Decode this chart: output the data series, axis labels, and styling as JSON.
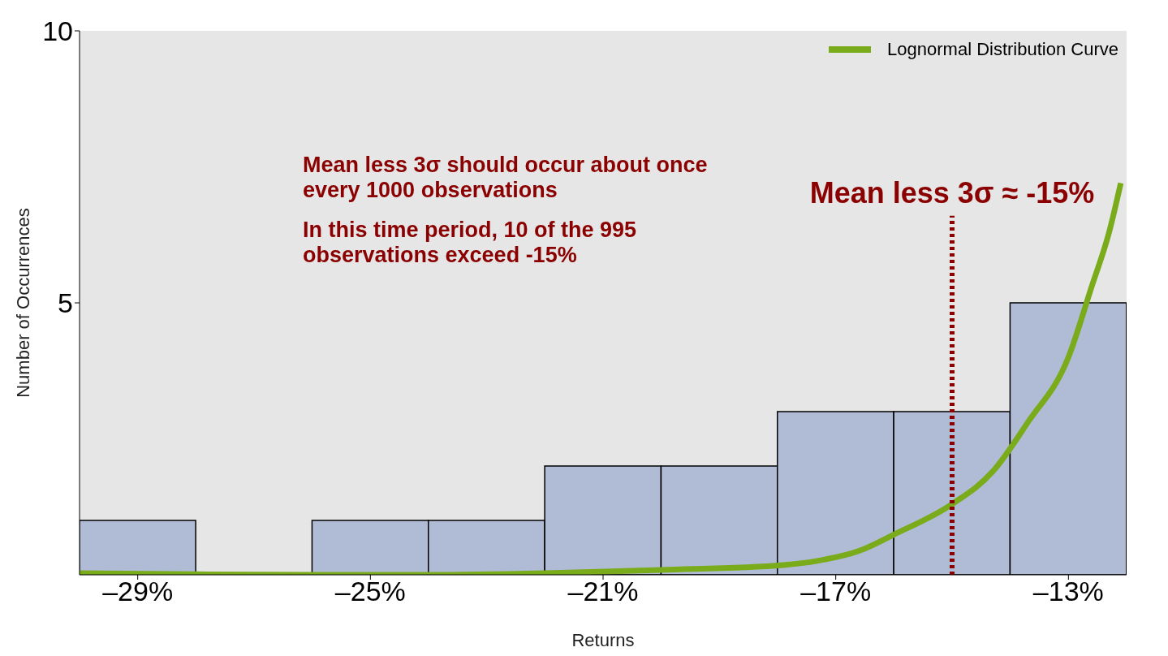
{
  "chart_data": {
    "type": "histogram",
    "xlabel": "Returns",
    "ylabel": "Number of Occurrences",
    "bins": [
      -30,
      -28,
      -26,
      -24,
      -22,
      -20,
      -18,
      -16,
      -14,
      -12
    ],
    "values": [
      1,
      0,
      1,
      1,
      2,
      2,
      3,
      3,
      5
    ],
    "color": "#b0bcd6",
    "series": [
      {
        "type": "line",
        "name": "Lognormal Distribution Curve",
        "color": "#7aab1a",
        "x": [
          -30,
          -28,
          -26,
          -24,
          -22,
          -20,
          -17.9,
          -17.3,
          -16.6,
          -16,
          -15,
          -14.3,
          -13.7,
          -13,
          -12.6,
          -12.3,
          -12.1
        ],
        "values": [
          0.03,
          0.01,
          0,
          0,
          0.03,
          0.09,
          0.18,
          0.26,
          0.44,
          0.74,
          1.3,
          1.9,
          2.8,
          4,
          5.3,
          6.3,
          7.2
        ]
      }
    ],
    "xlim": [
      -30,
      -12
    ],
    "xticks": [
      {
        "value": -29,
        "label": "–29%"
      },
      {
        "value": -25,
        "label": "–25%"
      },
      {
        "value": -21,
        "label": "–21%"
      },
      {
        "value": -17,
        "label": "–17%"
      },
      {
        "value": -13,
        "label": "–13%"
      }
    ],
    "ylim": [
      0,
      10
    ],
    "yticks": [
      5,
      10
    ],
    "ref_lines": [
      {
        "axis": "x",
        "value": -15,
        "label": "Mean less 3σ ≈ -15%",
        "color": "#8b0000",
        "line_style": "dotted"
      }
    ],
    "annotations": [
      "Mean less 3σ should occur about once every 1000 observations",
      "In this time period, 10 of the 995 observations exceed -15%"
    ],
    "legend": "top right",
    "grid": false
  }
}
